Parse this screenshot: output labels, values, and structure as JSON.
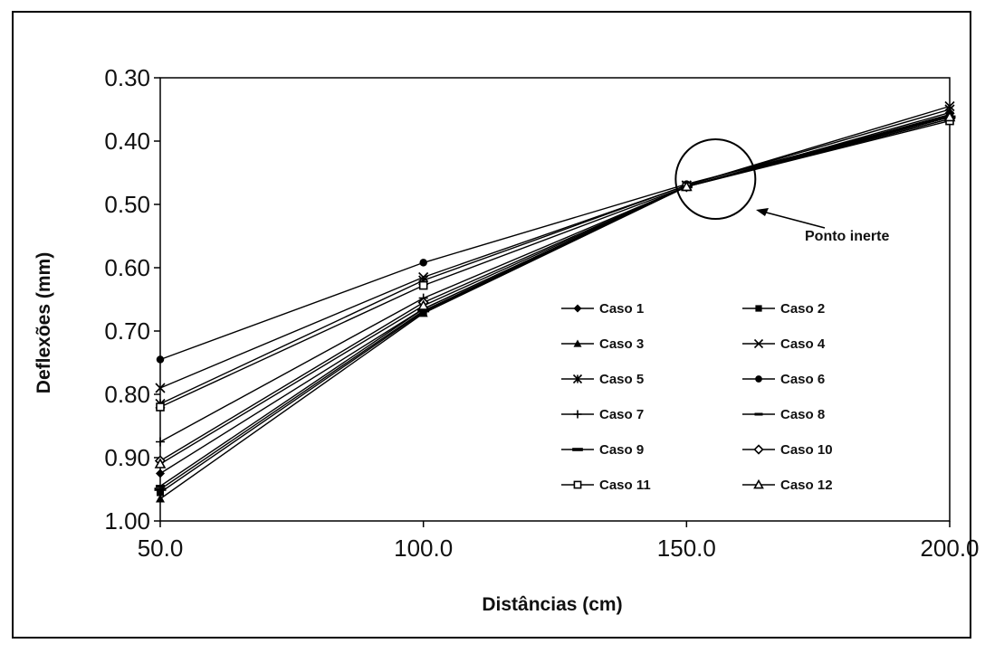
{
  "chart_data": {
    "type": "line",
    "title": "",
    "xlabel": "Distâncias (cm)",
    "ylabel": "Deflexões (mm)",
    "x": [
      50.0,
      100.0,
      150.0,
      200.0
    ],
    "x_tick_labels": [
      "50.0",
      "100.0",
      "150.0",
      "200.0"
    ],
    "xlim": [
      50,
      200
    ],
    "ylim": [
      0.3,
      1.0
    ],
    "y_inverted": true,
    "y_tick_values": [
      0.3,
      0.4,
      0.5,
      0.6,
      0.7,
      0.8,
      0.9,
      1.0
    ],
    "y_tick_labels": [
      "0.30",
      "0.40",
      "0.50",
      "0.60",
      "0.70",
      "0.80",
      "0.90",
      "1.00"
    ],
    "grid": false,
    "legend_position": "center-right",
    "series": [
      {
        "name": "Caso 1",
        "marker": "diamond-filled",
        "values": [
          0.925,
          0.665,
          0.472,
          0.355
        ]
      },
      {
        "name": "Caso 2",
        "marker": "square-filled",
        "values": [
          0.955,
          0.67,
          0.472,
          0.36
        ]
      },
      {
        "name": "Caso 3",
        "marker": "triangle-filled",
        "values": [
          0.965,
          0.672,
          0.472,
          0.358
        ]
      },
      {
        "name": "Caso 4",
        "marker": "x",
        "values": [
          0.79,
          0.615,
          0.47,
          0.345
        ]
      },
      {
        "name": "Caso 5",
        "marker": "asterisk",
        "values": [
          0.815,
          0.62,
          0.47,
          0.35
        ]
      },
      {
        "name": "Caso 6",
        "marker": "circle-filled",
        "values": [
          0.745,
          0.592,
          0.468,
          0.36
        ]
      },
      {
        "name": "Caso 7",
        "marker": "plus",
        "values": [
          0.875,
          0.648,
          0.472,
          0.362
        ]
      },
      {
        "name": "Caso 8",
        "marker": "dash",
        "values": [
          0.945,
          0.665,
          0.472,
          0.365
        ]
      },
      {
        "name": "Caso 9",
        "marker": "dash-long",
        "values": [
          0.95,
          0.668,
          0.472,
          0.362
        ]
      },
      {
        "name": "Caso 10",
        "marker": "diamond-open",
        "values": [
          0.905,
          0.655,
          0.472,
          0.365
        ]
      },
      {
        "name": "Caso 11",
        "marker": "square-open",
        "values": [
          0.82,
          0.628,
          0.472,
          0.368
        ]
      },
      {
        "name": "Caso 12",
        "marker": "triangle-open",
        "values": [
          0.91,
          0.66,
          0.472,
          0.362
        ]
      }
    ],
    "annotations": [
      {
        "text": "Ponto inerte",
        "target_x": 150.0,
        "target_y": 0.47
      }
    ]
  }
}
